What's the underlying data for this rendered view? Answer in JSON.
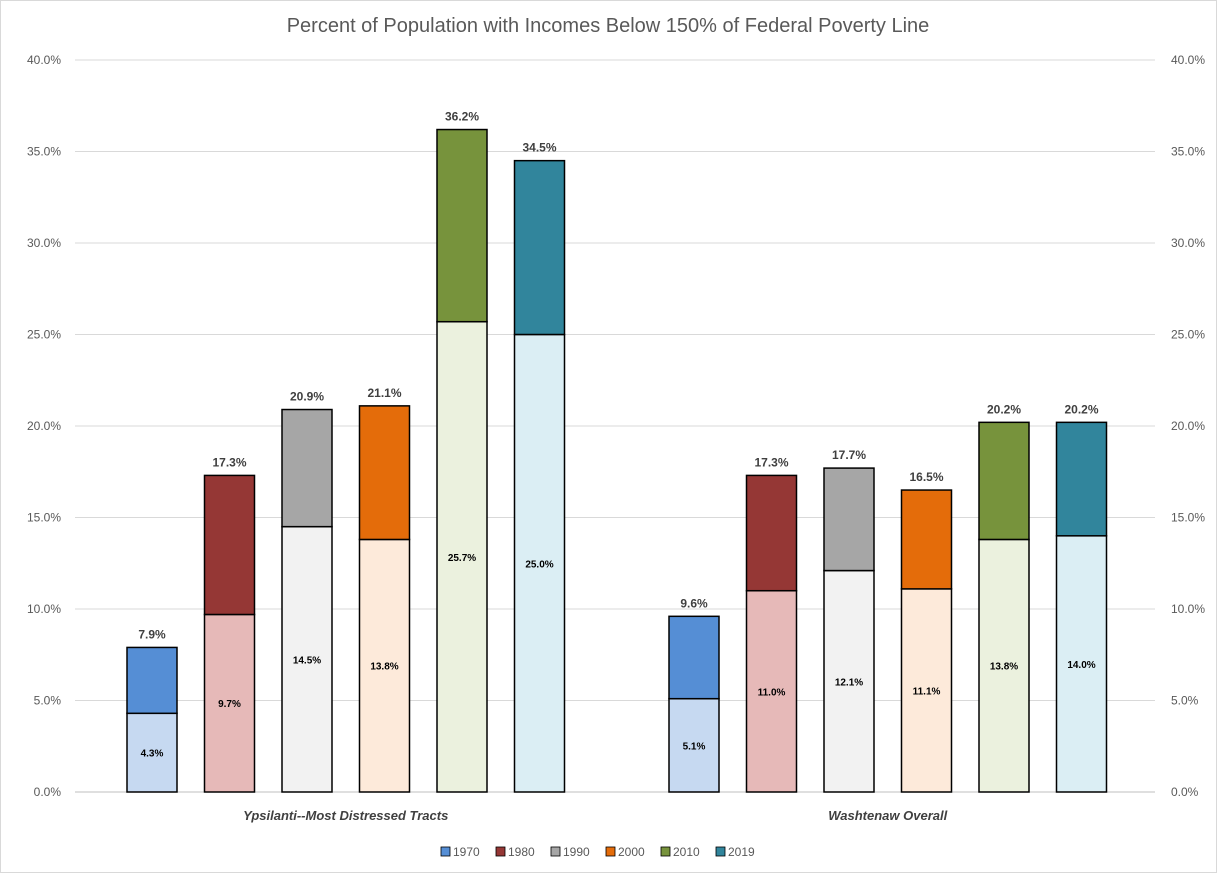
{
  "chart_data": {
    "type": "bar",
    "title": "Percent of Population with Incomes Below 150% of Federal Poverty Line",
    "xlabel": "",
    "ylabel": "",
    "ylim": [
      0,
      40
    ],
    "y_ticks": [
      "0.0%",
      "5.0%",
      "10.0%",
      "15.0%",
      "20.0%",
      "25.0%",
      "30.0%",
      "35.0%",
      "40.0%"
    ],
    "secondary_axis": true,
    "grid": true,
    "legend_position": "bottom",
    "stacked_segments": true,
    "categories": [
      "Ypsilanti--Most Distressed Tracts",
      "Washtenaw Overall"
    ],
    "series": [
      {
        "name": "1970",
        "color": "#558ed5",
        "lower_color": "#c6d9f1",
        "totals": [
          7.9,
          9.6
        ],
        "lower": [
          4.3,
          5.1
        ],
        "total_labels": [
          "7.9%",
          "9.6%"
        ],
        "lower_labels": [
          "4.3%",
          "5.1%"
        ]
      },
      {
        "name": "1980",
        "color": "#953735",
        "lower_color": "#e6b9b8",
        "totals": [
          17.3,
          17.3
        ],
        "lower": [
          9.7,
          11.0
        ],
        "total_labels": [
          "17.3%",
          "17.3%"
        ],
        "lower_labels": [
          "9.7%",
          "11.0%"
        ]
      },
      {
        "name": "1990",
        "color": "#a6a6a6",
        "lower_color": "#f2f2f2",
        "totals": [
          20.9,
          17.7
        ],
        "lower": [
          14.5,
          12.1
        ],
        "total_labels": [
          "20.9%",
          "17.7%"
        ],
        "lower_labels": [
          "14.5%",
          "12.1%"
        ]
      },
      {
        "name": "2000",
        "color": "#e46c0a",
        "lower_color": "#fdeada",
        "totals": [
          21.1,
          16.5
        ],
        "lower": [
          13.8,
          11.1
        ],
        "total_labels": [
          "21.1%",
          "16.5%"
        ],
        "lower_labels": [
          "13.8%",
          "11.1%"
        ]
      },
      {
        "name": "2010",
        "color": "#77933c",
        "lower_color": "#ebf1de",
        "totals": [
          36.2,
          20.2
        ],
        "lower": [
          25.7,
          13.8
        ],
        "total_labels": [
          "36.2%",
          "20.2%"
        ],
        "lower_labels": [
          "25.7%",
          "13.8%"
        ]
      },
      {
        "name": "2019",
        "color": "#31859c",
        "lower_color": "#dbeef4",
        "totals": [
          34.5,
          20.2
        ],
        "lower": [
          25.0,
          14.0
        ],
        "total_labels": [
          "34.5%",
          "20.2%"
        ],
        "lower_labels": [
          "25.0%",
          "14.0%"
        ]
      }
    ]
  }
}
